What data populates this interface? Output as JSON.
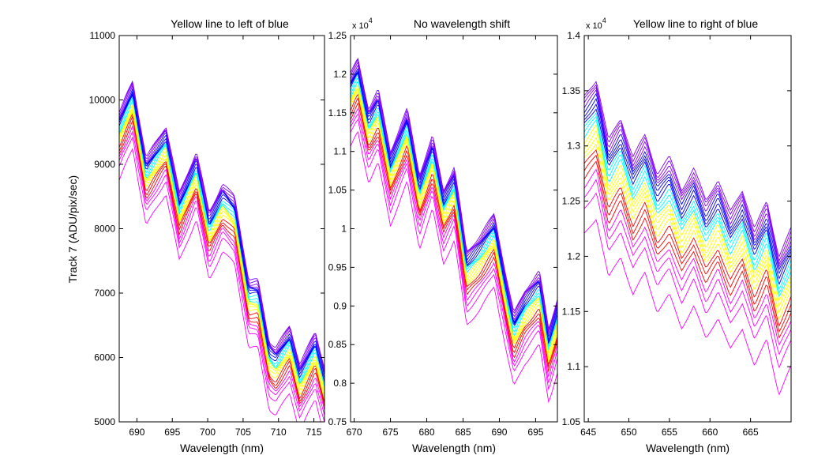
{
  "figure": {
    "ylabel": "Track 7 (ADU/pix/sec)"
  },
  "chart_data": [
    {
      "type": "line",
      "title": "Yellow line to left of blue",
      "xlabel": "Wavelength (nm)",
      "ylabel": "Track 7 (ADU/pix/sec)",
      "xlim": [
        687.5,
        716.5
      ],
      "ylim": [
        5000,
        11000
      ],
      "xticks": [
        690,
        695,
        700,
        705,
        710,
        715
      ],
      "xtick_labels": [
        "690",
        "695",
        "700",
        "705",
        "710",
        "715"
      ],
      "yticks": [
        5000,
        6000,
        7000,
        8000,
        9000,
        10000,
        11000
      ],
      "ytick_labels": [
        "5000",
        "6000",
        "7000",
        "8000",
        "9000",
        "10000",
        "11000"
      ],
      "multiplier": "",
      "grid": false,
      "legend": "none",
      "series_count": 22,
      "series_color_order": [
        "#ff00ff",
        "#ff0000",
        "#ffff00",
        "#00ffff",
        "#0000ff",
        "#8000ff"
      ],
      "representative_curve": {
        "x": [
          687.5,
          689.4,
          691.3,
          694.1,
          696.0,
          698.4,
          700.2,
          702.1,
          703.8,
          705.8,
          707.1,
          708.7,
          709.6,
          711.6,
          713.0,
          715.2,
          716.5
        ],
        "y": [
          9650,
          10150,
          8950,
          9450,
          8400,
          9050,
          8100,
          8550,
          8350,
          7050,
          7050,
          6100,
          6000,
          6350,
          5750,
          6250,
          5700
        ]
      },
      "offset_range": [
        -900,
        150
      ]
    },
    {
      "type": "line",
      "title": "No wavelength shift",
      "xlabel": "Wavelength (nm)",
      "ylabel": "",
      "xlim": [
        669.5,
        698
      ],
      "ylim": [
        0.75,
        1.25
      ],
      "xticks": [
        670,
        675,
        680,
        685,
        690,
        695
      ],
      "xtick_labels": [
        "670",
        "675",
        "680",
        "685",
        "690",
        "695"
      ],
      "yticks": [
        0.75,
        0.8,
        0.85,
        0.9,
        0.95,
        1,
        1.05,
        1.1,
        1.15,
        1.2,
        1.25
      ],
      "ytick_labels": [
        "0.75",
        "0.8",
        "0.85",
        "0.9",
        "0.95",
        "1",
        "1.05",
        "1.1",
        "1.15",
        "1.2",
        "1.25"
      ],
      "multiplier": "x 10^4",
      "grid": false,
      "legend": "none",
      "series_count": 22,
      "series_color_order": [
        "#ff00ff",
        "#ff0000",
        "#ffff00",
        "#00ffff",
        "#0000ff",
        "#8000ff"
      ],
      "representative_curve": {
        "x": [
          669.5,
          670.5,
          672.0,
          673.3,
          675.0,
          677.3,
          679.0,
          680.8,
          682.3,
          683.8,
          685.5,
          687.3,
          689.3,
          691.0,
          692.0,
          693.5,
          695.5,
          696.8,
          698.0
        ],
        "y": [
          1.19,
          1.21,
          1.145,
          1.17,
          1.09,
          1.145,
          1.06,
          1.11,
          1.04,
          1.07,
          0.96,
          0.98,
          1.01,
          0.925,
          0.88,
          0.91,
          0.935,
          0.86,
          0.9
        ]
      },
      "offset_range": [
        -0.085,
        0.01
      ]
    },
    {
      "type": "line",
      "title": "Yellow line to right of blue",
      "xlabel": "Wavelength (nm)",
      "ylabel": "",
      "xlim": [
        644.5,
        670
      ],
      "ylim": [
        1.05,
        1.4
      ],
      "xticks": [
        645,
        650,
        655,
        660,
        665
      ],
      "xtick_labels": [
        "645",
        "650",
        "655",
        "660",
        "665"
      ],
      "yticks": [
        1.05,
        1.1,
        1.15,
        1.2,
        1.25,
        1.3,
        1.35,
        1.4
      ],
      "ytick_labels": [
        "1.05",
        "1.1",
        "1.15",
        "1.2",
        "1.25",
        "1.3",
        "1.35",
        "1.4"
      ],
      "multiplier": "x 10^4",
      "grid": false,
      "legend": "none",
      "series_count": 22,
      "series_color_order": [
        "#ff00ff",
        "#ff0000",
        "#ffff00",
        "#00ffff",
        "#0000ff",
        "#8000ff"
      ],
      "representative_curve": {
        "x": [
          644.5,
          646.0,
          647.5,
          649.0,
          650.5,
          652.0,
          653.5,
          655.0,
          656.5,
          658.0,
          659.5,
          661.0,
          662.5,
          664.0,
          665.5,
          667.0,
          668.5,
          670.0
        ],
        "y": [
          1.33,
          1.345,
          1.29,
          1.31,
          1.275,
          1.295,
          1.26,
          1.275,
          1.245,
          1.265,
          1.235,
          1.255,
          1.225,
          1.245,
          1.21,
          1.235,
          1.185,
          1.21
        ]
      },
      "offset_range": [
        -0.11,
        0.015
      ]
    }
  ]
}
